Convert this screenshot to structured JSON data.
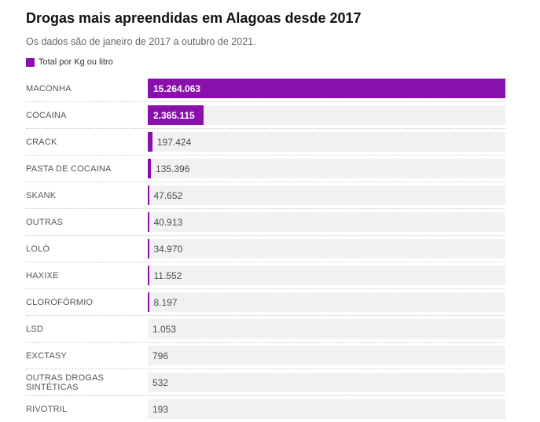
{
  "title": "Drogas mais apreendidas em Alagoas desde 2017",
  "subtitle": "Os dados são de janeiro de 2017 a outubro de 2021.",
  "legend": {
    "label": "Total por Kg ou litro"
  },
  "colors": {
    "bar": "#8a10ae",
    "track": "#f1f1f1",
    "separator": "#c9c9c9",
    "title_text": "#111111",
    "subtitle_text": "#666666",
    "category_text": "#555555",
    "value_outside_text": "#4d4d4d",
    "value_inside_text": "#ffffff",
    "background": "#ffffff"
  },
  "chart_data": {
    "type": "bar",
    "orientation": "horizontal",
    "title": "Drogas mais apreendidas em Alagoas desde 2017",
    "subtitle": "Os dados são de janeiro de 2017 a outubro de 2021.",
    "series_name": "Total por Kg ou litro",
    "categories": [
      "MACONHA",
      "COCAINA",
      "CRACK",
      "PASTA DE COCAINA",
      "SKANK",
      "OUTRAS",
      "LOLÓ",
      "HAXIXE",
      "CLOROFÓRMIO",
      "LSD",
      "EXCTASY",
      "OUTRAS DROGAS SINTÉTICAS",
      "RIVOTRIL"
    ],
    "values": [
      15264063,
      2365115,
      197424,
      135396,
      47652,
      40913,
      34970,
      11552,
      8197,
      1053,
      796,
      532,
      193
    ],
    "value_labels": [
      "15.264.063",
      "2.365.115",
      "197.424",
      "135.396",
      "47.652",
      "40.913",
      "34.970",
      "11.552",
      "8.197",
      "1.053",
      "796",
      "532",
      "193"
    ],
    "xlim": [
      0,
      15264063
    ],
    "grid": false,
    "legend_position": "top-left"
  }
}
